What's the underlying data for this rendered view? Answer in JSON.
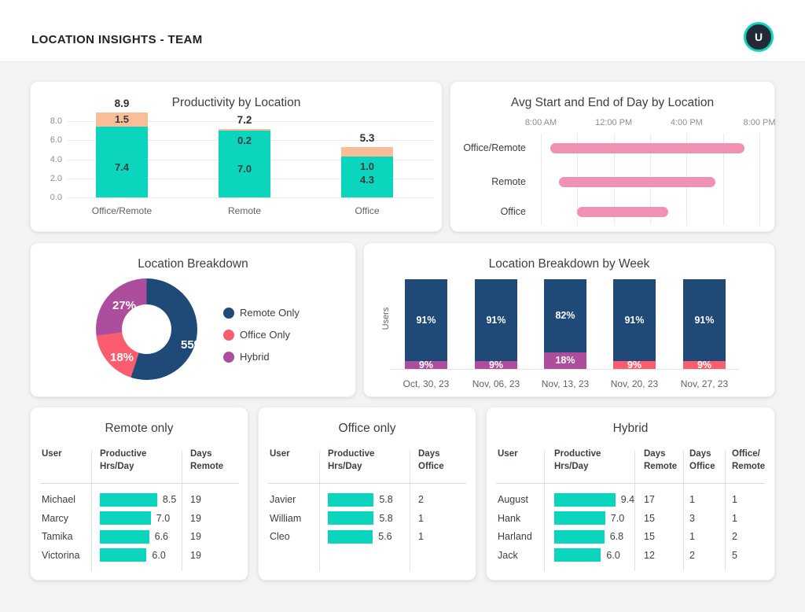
{
  "header": {
    "title": "LOCATION INSIGHTS - TEAM",
    "avatar_initial": "U"
  },
  "palette": {
    "teal": "#0bd6bd",
    "peach": "#f9be97",
    "pink": "#ef91b2",
    "navy": "#1f4a78",
    "coral": "#fb5d6e",
    "purple": "#ac4d9d"
  },
  "chart_data": [
    {
      "id": "productivity-by-location",
      "type": "bar",
      "stacked": true,
      "title": "Productivity by Location",
      "categories": [
        "Office/Remote",
        "Remote",
        "Office"
      ],
      "series": [
        {
          "color": "teal",
          "values": [
            7.4,
            7.0,
            4.3
          ]
        },
        {
          "color": "peach",
          "values": [
            1.5,
            0.2,
            1.0
          ]
        }
      ],
      "totals": [
        8.9,
        7.2,
        5.3
      ],
      "y_ticks": [
        0.0,
        2.0,
        4.0,
        6.0,
        8.0
      ],
      "ylim": [
        0,
        8
      ],
      "grid": true
    },
    {
      "id": "avg-start-end-of-day",
      "type": "range-bar",
      "title": "Avg Start and End of Day by Location",
      "categories": [
        "Office/Remote",
        "Remote",
        "Office"
      ],
      "ranges_hours": [
        [
          8.5,
          19.2
        ],
        [
          9.0,
          17.6
        ],
        [
          10.0,
          15.0
        ]
      ],
      "x_ticks": [
        {
          "hour": 8,
          "label": "8:00 AM"
        },
        {
          "hour": 12,
          "label": "12:00 PM"
        },
        {
          "hour": 16,
          "label": "4:00 PM"
        },
        {
          "hour": 20,
          "label": "8:00 PM"
        }
      ],
      "xlim": [
        8,
        20
      ],
      "gridline_every_hours": 2,
      "bar_color": "pink"
    },
    {
      "id": "location-breakdown",
      "type": "pie",
      "donut": true,
      "title": "Location Breakdown",
      "legend_position": "right",
      "slices": [
        {
          "label": "Remote Only",
          "value": 55,
          "display": "55%",
          "color": "navy"
        },
        {
          "label": "Office Only",
          "value": 18,
          "display": "18%",
          "color": "coral"
        },
        {
          "label": "Hybrid",
          "value": 27,
          "display": "27%",
          "color": "purple"
        }
      ]
    },
    {
      "id": "location-breakdown-by-week",
      "type": "bar",
      "stacked": true,
      "percent": true,
      "title": "Location Breakdown by Week",
      "ylabel": "Users",
      "categories": [
        "Oct, 30, 23",
        "Nov, 06, 23",
        "Nov, 13, 23",
        "Nov, 20, 23",
        "Nov, 27, 23"
      ],
      "bars": [
        {
          "top": {
            "value": 91,
            "display": "91%",
            "color": "navy"
          },
          "bottom": {
            "value": 9,
            "display": "9%",
            "color": "purple"
          }
        },
        {
          "top": {
            "value": 91,
            "display": "91%",
            "color": "navy"
          },
          "bottom": {
            "value": 9,
            "display": "9%",
            "color": "purple"
          }
        },
        {
          "top": {
            "value": 82,
            "display": "82%",
            "color": "navy"
          },
          "bottom": {
            "value": 18,
            "display": "18%",
            "color": "purple"
          }
        },
        {
          "top": {
            "value": 91,
            "display": "91%",
            "color": "navy"
          },
          "bottom": {
            "value": 9,
            "display": "9%",
            "color": "coral"
          }
        },
        {
          "top": {
            "value": 91,
            "display": "91%",
            "color": "navy"
          },
          "bottom": {
            "value": 9,
            "display": "9%",
            "color": "coral"
          }
        }
      ]
    }
  ],
  "tables": [
    {
      "title": "Remote only",
      "columns": [
        [
          "User"
        ],
        [
          "Productive",
          "Hrs/Day"
        ],
        [
          "Days",
          "Remote"
        ]
      ],
      "rows": [
        {
          "user": "Michael",
          "hours": 8.5,
          "cells": [
            "19"
          ]
        },
        {
          "user": "Marcy",
          "hours": 7.0,
          "cells": [
            "19"
          ]
        },
        {
          "user": "Tamika",
          "hours": 6.6,
          "cells": [
            "19"
          ]
        },
        {
          "user": "Victorina",
          "hours": 6.0,
          "cells": [
            "19"
          ]
        }
      ]
    },
    {
      "title": "Office only",
      "columns": [
        [
          "User"
        ],
        [
          "Productive",
          "Hrs/Day"
        ],
        [
          "Days",
          "Office"
        ]
      ],
      "rows": [
        {
          "user": "Javier",
          "hours": 5.8,
          "cells": [
            "2"
          ]
        },
        {
          "user": "William",
          "hours": 5.8,
          "cells": [
            "1"
          ]
        },
        {
          "user": "Cleo",
          "hours": 5.6,
          "cells": [
            "1"
          ]
        }
      ]
    },
    {
      "title": "Hybrid",
      "columns": [
        [
          "User"
        ],
        [
          "Productive",
          "Hrs/Day"
        ],
        [
          "Days",
          "Remote"
        ],
        [
          "Days",
          "Office"
        ],
        [
          "Office/",
          "Remote"
        ]
      ],
      "rows": [
        {
          "user": "August",
          "hours": 9.4,
          "cells": [
            "17",
            "1",
            "1"
          ]
        },
        {
          "user": "Hank",
          "hours": 7.0,
          "cells": [
            "15",
            "3",
            "1"
          ]
        },
        {
          "user": "Harland",
          "hours": 6.8,
          "cells": [
            "15",
            "1",
            "2"
          ]
        },
        {
          "user": "Jack",
          "hours": 6.0,
          "cells": [
            "12",
            "2",
            "5"
          ]
        }
      ]
    }
  ]
}
